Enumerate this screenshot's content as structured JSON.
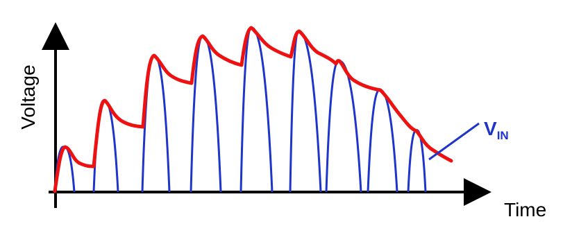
{
  "diagram": {
    "y_axis_label": "Voltage",
    "x_axis_label": "Time",
    "annotation": {
      "label_main": "V",
      "label_sub": "IN"
    },
    "colors": {
      "axis": "#000000",
      "pulses": "#1f35c9",
      "envelope": "#ee1111",
      "annotation": "#1f35c9",
      "background": "#ffffff"
    }
  }
}
